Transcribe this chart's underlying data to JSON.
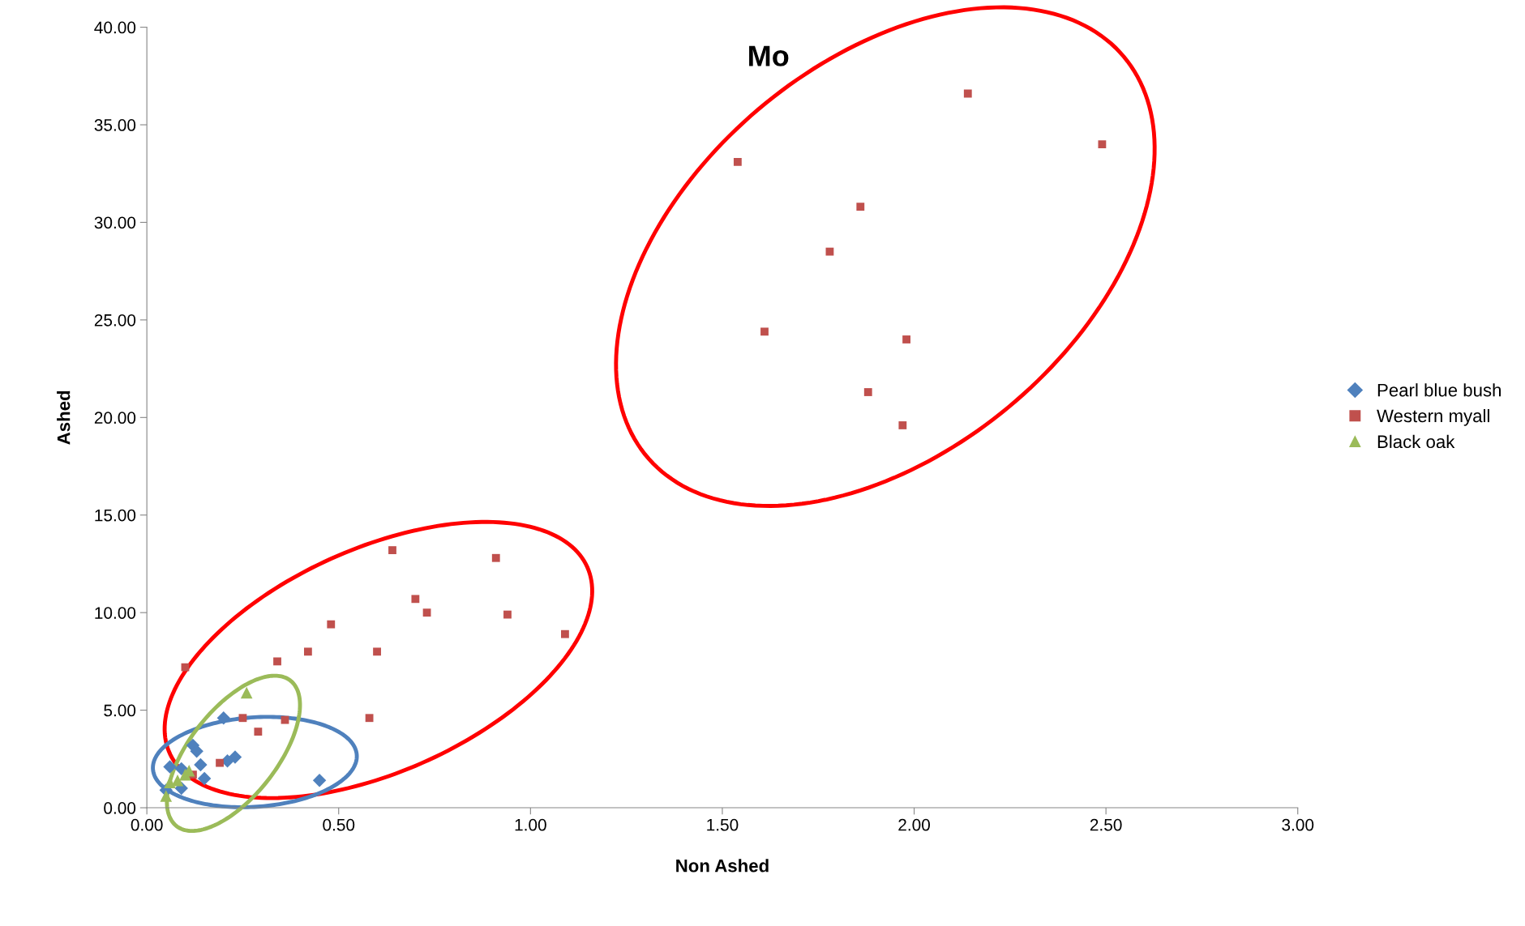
{
  "chart_data": {
    "type": "scatter",
    "title": "Mo",
    "xlabel": "Non Ashed",
    "ylabel": "Ashed",
    "xlim": [
      0,
      3
    ],
    "ylim": [
      0,
      40
    ],
    "xticks": [
      {
        "value": 0,
        "label": "0.00"
      },
      {
        "value": 0.5,
        "label": "0.50"
      },
      {
        "value": 1,
        "label": "1.00"
      },
      {
        "value": 1.5,
        "label": "1.50"
      },
      {
        "value": 2,
        "label": "2.00"
      },
      {
        "value": 2.5,
        "label": "2.50"
      },
      {
        "value": 3,
        "label": "3.00"
      }
    ],
    "yticks": [
      {
        "value": 0,
        "label": "0.00"
      },
      {
        "value": 5,
        "label": "5.00"
      },
      {
        "value": 10,
        "label": "10.00"
      },
      {
        "value": 15,
        "label": "15.00"
      },
      {
        "value": 20,
        "label": "20.00"
      },
      {
        "value": 25,
        "label": "25.00"
      },
      {
        "value": 30,
        "label": "30.00"
      },
      {
        "value": 35,
        "label": "35.00"
      },
      {
        "value": 40,
        "label": "40.00"
      }
    ],
    "grid": false,
    "legend": "right",
    "series": [
      {
        "name": "Pearl blue bush",
        "color": "#4f81bd",
        "marker": "diamond",
        "x": [
          0.2,
          0.12,
          0.13,
          0.23,
          0.21,
          0.14,
          0.45,
          0.06,
          0.15,
          0.09,
          0.05,
          0.09
        ],
        "values": [
          4.6,
          3.2,
          2.9,
          2.6,
          2.4,
          2.2,
          1.4,
          2.1,
          1.5,
          2.0,
          0.9,
          1.0
        ]
      },
      {
        "name": "Western myall",
        "color": "#c0504d",
        "marker": "square",
        "x": [
          1.54,
          2.14,
          2.49,
          1.86,
          1.78,
          1.61,
          1.98,
          1.88,
          1.97,
          0.64,
          0.91,
          0.7,
          0.73,
          0.94,
          1.09,
          0.48,
          0.42,
          0.6,
          0.1,
          0.34,
          0.25,
          0.36,
          0.29,
          0.58,
          0.19,
          0.12
        ],
        "values": [
          33.1,
          36.6,
          34.0,
          30.8,
          28.5,
          24.4,
          24.0,
          21.3,
          19.6,
          13.2,
          12.8,
          10.7,
          10.0,
          9.9,
          8.9,
          9.4,
          8.0,
          8.0,
          7.2,
          7.5,
          4.6,
          4.5,
          3.9,
          4.6,
          2.3,
          1.7
        ]
      },
      {
        "name": "Black oak",
        "color": "#9bbb59",
        "marker": "triangle",
        "x": [
          0.26,
          0.11,
          0.1,
          0.06,
          0.05,
          0.08
        ],
        "values": [
          5.9,
          1.9,
          1.7,
          1.3,
          0.6,
          1.4
        ]
      }
    ]
  }
}
